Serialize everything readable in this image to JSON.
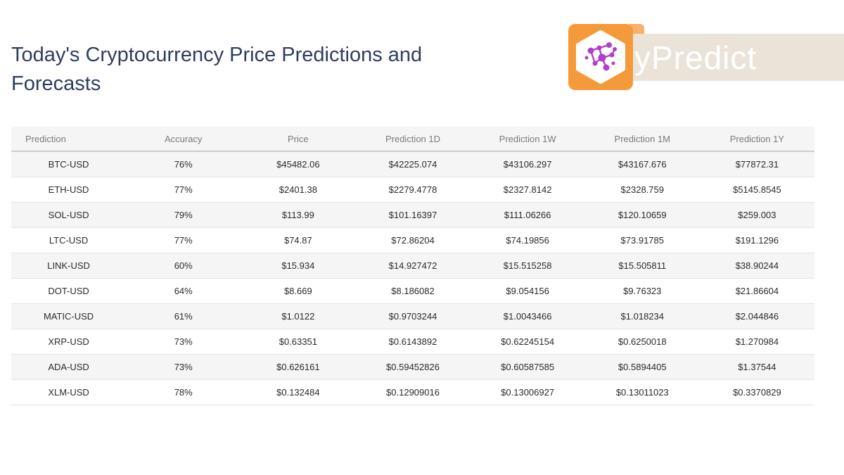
{
  "header": {
    "title": "Today's Cryptocurrency Price Predictions and Forecasts"
  },
  "brand": {
    "name": "yPredict",
    "logo_icon": "network-nodes-icon",
    "colors": {
      "badge": "#f59a3a",
      "bar": "#ebe3d7",
      "nodes": "#b03fcb"
    }
  },
  "table": {
    "columns": [
      "Prediction",
      "Accuracy",
      "Price",
      "Prediction 1D",
      "Prediction 1W",
      "Prediction 1M",
      "Prediction 1Y"
    ],
    "rows": [
      [
        "BTC-USD",
        "76%",
        "$45482.06",
        "$42225.074",
        "$43106.297",
        "$43167.676",
        "$77872.31"
      ],
      [
        "ETH-USD",
        "77%",
        "$2401.38",
        "$2279.4778",
        "$2327.8142",
        "$2328.759",
        "$5145.8545"
      ],
      [
        "SOL-USD",
        "79%",
        "$113.99",
        "$101.16397",
        "$111.06266",
        "$120.10659",
        "$259.003"
      ],
      [
        "LTC-USD",
        "77%",
        "$74.87",
        "$72.86204",
        "$74.19856",
        "$73.91785",
        "$191.1296"
      ],
      [
        "LINK-USD",
        "60%",
        "$15.934",
        "$14.927472",
        "$15.515258",
        "$15.505811",
        "$38.90244"
      ],
      [
        "DOT-USD",
        "64%",
        "$8.669",
        "$8.186082",
        "$9.054156",
        "$9.76323",
        "$21.86604"
      ],
      [
        "MATIC-USD",
        "61%",
        "$1.0122",
        "$0.9703244",
        "$1.0043466",
        "$1.018234",
        "$2.044846"
      ],
      [
        "XRP-USD",
        "73%",
        "$0.63351",
        "$0.6143892",
        "$0.62245154",
        "$0.6250018",
        "$1.270984"
      ],
      [
        "ADA-USD",
        "73%",
        "$0.626161",
        "$0.59452826",
        "$0.60587585",
        "$0.5894405",
        "$1.37544"
      ],
      [
        "XLM-USD",
        "78%",
        "$0.132484",
        "$0.12909016",
        "$0.13006927",
        "$0.13011023",
        "$0.3370829"
      ]
    ]
  }
}
